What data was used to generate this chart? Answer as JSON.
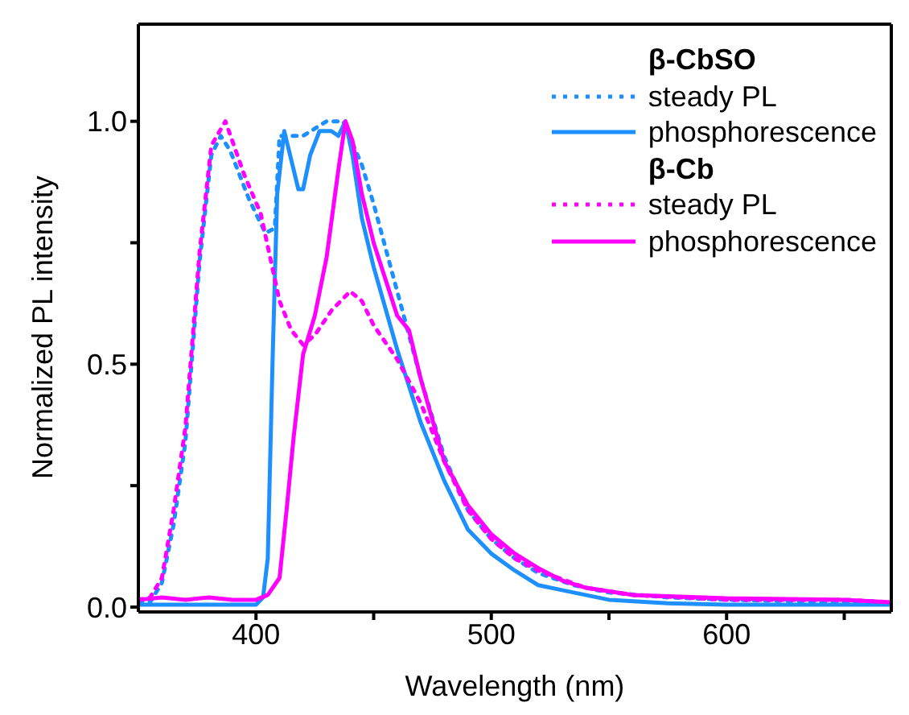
{
  "chart_data": {
    "type": "line",
    "xlabel": "Wavelength (nm)",
    "ylabel": "Normalized PL intensity",
    "annotations": [
      "β-CbSO",
      "β-Cb"
    ],
    "xlim": [
      350,
      670
    ],
    "xticks": [
      400,
      {
        "value": 450,
        "label": null
      },
      500,
      {
        "value": 550,
        "label": null
      },
      600,
      {
        "value": 650,
        "label": null
      }
    ],
    "ylim": [
      -0.01,
      1.2
    ],
    "yticks": [
      {
        "value": 0,
        "label": "0.0"
      },
      {
        "value": 0.25,
        "label": null
      },
      0.5,
      {
        "value": 0.75,
        "label": null
      },
      {
        "value": 1,
        "label": "1.0"
      }
    ],
    "legend": "top right",
    "marker": "none",
    "series": [
      {
        "name": "steady PL",
        "color": "#1e8fff",
        "line_style": "dotted",
        "x": [
          350,
          355,
          360,
          365,
          370,
          376,
          381,
          385,
          389,
          397,
          404,
          408,
          410,
          420,
          430,
          437,
          445,
          450,
          460,
          470,
          480,
          490,
          500,
          510,
          520,
          535,
          550,
          575,
          600,
          650,
          670
        ],
        "values": [
          0.01,
          0.01,
          0.05,
          0.17,
          0.34,
          0.71,
          0.93,
          0.97,
          0.94,
          0.84,
          0.77,
          0.78,
          0.97,
          0.97,
          1.0,
          1.0,
          0.91,
          0.83,
          0.65,
          0.47,
          0.31,
          0.2,
          0.14,
          0.1,
          0.07,
          0.045,
          0.03,
          0.02,
          0.015,
          0.01,
          0.01
        ]
      },
      {
        "name": "phosphorescence",
        "color": "#1e8fff",
        "line_style": "solid",
        "x": [
          350,
          375,
          400,
          403,
          405,
          407,
          409,
          412,
          415,
          418,
          420,
          423,
          427,
          432,
          435,
          438,
          441,
          445,
          450,
          460,
          470,
          480,
          490,
          500,
          510,
          520,
          530,
          550,
          575,
          600,
          670
        ],
        "values": [
          0.005,
          0.005,
          0.005,
          0.02,
          0.1,
          0.5,
          0.85,
          0.98,
          0.92,
          0.86,
          0.86,
          0.93,
          0.98,
          0.98,
          0.97,
          1.0,
          0.93,
          0.8,
          0.7,
          0.53,
          0.38,
          0.26,
          0.16,
          0.11,
          0.075,
          0.045,
          0.035,
          0.015,
          0.008,
          0.005,
          0.005
        ]
      },
      {
        "name": "steady PL",
        "color": "#ff00ff",
        "line_style": "dotted",
        "x": [
          350,
          355,
          360,
          365,
          370,
          376,
          381,
          387,
          395,
          402,
          410,
          415,
          420,
          425,
          432,
          440,
          445,
          450,
          460,
          470,
          480,
          490,
          500,
          510,
          520,
          540,
          560,
          600,
          650,
          670
        ],
        "values": [
          0.015,
          0.02,
          0.06,
          0.2,
          0.37,
          0.73,
          0.95,
          1.0,
          0.89,
          0.81,
          0.63,
          0.57,
          0.54,
          0.56,
          0.61,
          0.65,
          0.63,
          0.58,
          0.51,
          0.42,
          0.3,
          0.2,
          0.14,
          0.1,
          0.075,
          0.04,
          0.025,
          0.015,
          0.015,
          0.01
        ]
      },
      {
        "name": "phosphorescence",
        "color": "#ff00ff",
        "line_style": "solid",
        "x": [
          350,
          360,
          370,
          380,
          390,
          400,
          405,
          410,
          413,
          416,
          420,
          425,
          430,
          435,
          438,
          441,
          445,
          450,
          460,
          465,
          470,
          480,
          490,
          500,
          510,
          520,
          530,
          540,
          560,
          600,
          650,
          670
        ],
        "values": [
          0.015,
          0.02,
          0.015,
          0.02,
          0.015,
          0.015,
          0.025,
          0.06,
          0.2,
          0.35,
          0.52,
          0.6,
          0.72,
          0.9,
          1.0,
          0.96,
          0.85,
          0.75,
          0.6,
          0.57,
          0.47,
          0.3,
          0.21,
          0.15,
          0.11,
          0.08,
          0.055,
          0.04,
          0.025,
          0.018,
          0.015,
          0.01
        ]
      }
    ]
  }
}
